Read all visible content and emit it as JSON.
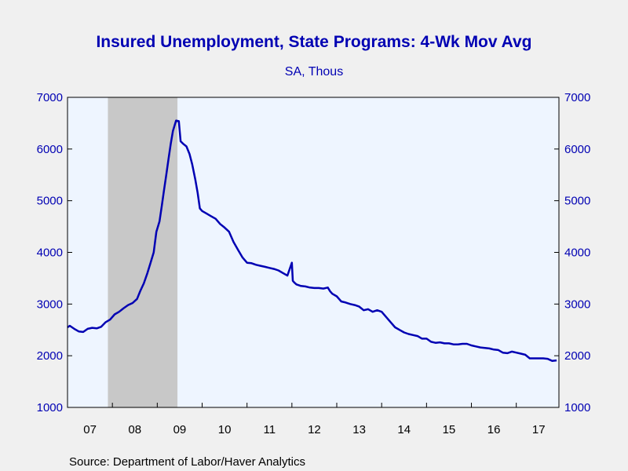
{
  "colors": {
    "background": "#f0f0f0",
    "plot_bg": "#eef5ff",
    "line": "#0000b3",
    "text": "#0000b3",
    "recession": "#c8c8c8",
    "axis": "#000000"
  },
  "source": "Source:  Department of Labor/Haver Analytics",
  "chart_data": {
    "type": "line",
    "title": "Insured Unemployment, State Programs: 4-Wk Mov Avg",
    "subtitle": "SA, Thous",
    "xlabel": "",
    "ylabel": "",
    "ylim": [
      1000,
      7000
    ],
    "xlim": [
      2007.0,
      2017.95
    ],
    "yticks": [
      1000,
      2000,
      3000,
      4000,
      5000,
      6000,
      7000
    ],
    "xtick_labels": [
      "07",
      "08",
      "09",
      "10",
      "11",
      "12",
      "13",
      "14",
      "15",
      "16",
      "17"
    ],
    "grid": false,
    "recession_shading": [
      2007.9,
      2009.45
    ],
    "series": [
      {
        "x": [
          2007.0,
          2007.05,
          2007.15,
          2007.25,
          2007.35,
          2007.45,
          2007.55,
          2007.65,
          2007.75,
          2007.85,
          2007.95,
          2008.05,
          2008.15,
          2008.25,
          2008.35,
          2008.45,
          2008.55,
          2008.62,
          2008.7,
          2008.78,
          2008.85,
          2008.92,
          2008.98,
          2009.05,
          2009.1,
          2009.15,
          2009.2,
          2009.25,
          2009.3,
          2009.35,
          2009.42,
          2009.48,
          2009.52,
          2009.58,
          2009.65,
          2009.72,
          2009.78,
          2009.85,
          2009.9,
          2009.95,
          2010.0,
          2010.1,
          2010.2,
          2010.3,
          2010.4,
          2010.5,
          2010.6,
          2010.7,
          2010.8,
          2010.9,
          2011.0,
          2011.1,
          2011.2,
          2011.3,
          2011.4,
          2011.5,
          2011.6,
          2011.7,
          2011.8,
          2011.9,
          2012.0,
          2012.02,
          2012.05,
          2012.1,
          2012.2,
          2012.3,
          2012.4,
          2012.5,
          2012.6,
          2012.7,
          2012.8,
          2012.85,
          2012.9,
          2013.0,
          2013.1,
          2013.2,
          2013.3,
          2013.4,
          2013.5,
          2013.6,
          2013.7,
          2013.8,
          2013.9,
          2014.0,
          2014.1,
          2014.2,
          2014.3,
          2014.4,
          2014.5,
          2014.6,
          2014.7,
          2014.8,
          2014.9,
          2015.0,
          2015.1,
          2015.2,
          2015.3,
          2015.4,
          2015.5,
          2015.6,
          2015.7,
          2015.8,
          2015.9,
          2016.0,
          2016.1,
          2016.2,
          2016.3,
          2016.4,
          2016.5,
          2016.6,
          2016.7,
          2016.8,
          2016.9,
          2017.0,
          2017.1,
          2017.2,
          2017.3,
          2017.4,
          2017.5,
          2017.6,
          2017.7,
          2017.8,
          2017.9
        ],
        "values": [
          2550,
          2580,
          2520,
          2470,
          2460,
          2520,
          2540,
          2530,
          2560,
          2650,
          2700,
          2800,
          2850,
          2920,
          2980,
          3020,
          3100,
          3250,
          3400,
          3600,
          3800,
          4000,
          4400,
          4600,
          4900,
          5200,
          5500,
          5800,
          6100,
          6350,
          6550,
          6540,
          6150,
          6100,
          6050,
          5900,
          5700,
          5400,
          5150,
          4850,
          4800,
          4750,
          4700,
          4650,
          4550,
          4480,
          4400,
          4200,
          4050,
          3900,
          3800,
          3790,
          3760,
          3740,
          3720,
          3700,
          3680,
          3650,
          3600,
          3550,
          3800,
          3450,
          3420,
          3380,
          3350,
          3340,
          3320,
          3310,
          3310,
          3300,
          3320,
          3250,
          3200,
          3150,
          3050,
          3030,
          3000,
          2980,
          2950,
          2880,
          2900,
          2850,
          2880,
          2850,
          2750,
          2650,
          2550,
          2500,
          2450,
          2420,
          2400,
          2380,
          2330,
          2330,
          2270,
          2250,
          2260,
          2240,
          2240,
          2220,
          2220,
          2230,
          2230,
          2200,
          2180,
          2160,
          2150,
          2140,
          2120,
          2110,
          2060,
          2050,
          2080,
          2060,
          2040,
          2020,
          1950,
          1950,
          1950,
          1950,
          1940,
          1900,
          1910
        ]
      }
    ]
  }
}
